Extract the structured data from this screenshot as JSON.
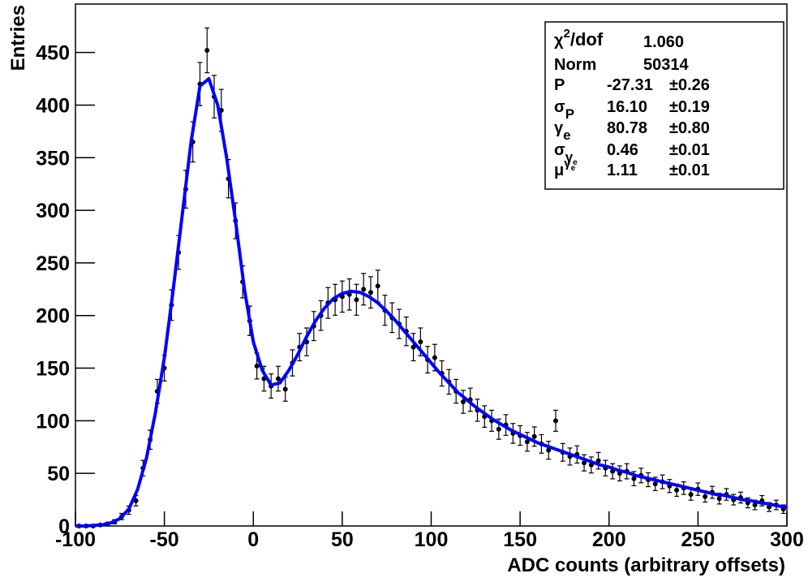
{
  "chart_data": {
    "type": "errorbar",
    "xlabel": "ADC counts (arbitrary offsets)",
    "ylabel": "Entries",
    "xlim": [
      -100,
      300
    ],
    "ylim": [
      0,
      496
    ],
    "xticks": [
      -100,
      -50,
      0,
      50,
      100,
      150,
      200,
      250,
      300
    ],
    "yticks": [
      0,
      50,
      100,
      150,
      200,
      250,
      300,
      350,
      400,
      450
    ],
    "points": {
      "color": "#000000",
      "x": [
        -98,
        -94,
        -90,
        -86,
        -82,
        -78,
        -74,
        -70,
        -66,
        -62,
        -58,
        -54,
        -50,
        -46,
        -42,
        -38,
        -34,
        -30,
        -26,
        -22,
        -18,
        -14,
        -10,
        -6,
        -2,
        2,
        6,
        10,
        14,
        18,
        22,
        26,
        30,
        34,
        38,
        42,
        46,
        50,
        54,
        58,
        62,
        66,
        70,
        74,
        78,
        82,
        86,
        90,
        94,
        98,
        102,
        106,
        110,
        114,
        118,
        122,
        126,
        130,
        134,
        138,
        142,
        146,
        150,
        154,
        158,
        162,
        166,
        170,
        174,
        178,
        182,
        186,
        190,
        194,
        198,
        202,
        206,
        210,
        214,
        218,
        222,
        226,
        230,
        234,
        238,
        242,
        246,
        250,
        254,
        258,
        262,
        266,
        270,
        274,
        278,
        282,
        286,
        290,
        294,
        298
      ],
      "values": [
        0,
        0,
        0,
        1,
        2,
        4,
        9,
        15,
        24,
        55,
        82,
        128,
        150,
        210,
        260,
        320,
        365,
        420,
        452,
        408,
        395,
        330,
        290,
        232,
        195,
        152,
        140,
        133,
        140,
        130,
        155,
        170,
        175,
        190,
        200,
        212,
        215,
        218,
        220,
        215,
        225,
        222,
        228,
        205,
        198,
        192,
        185,
        170,
        175,
        158,
        160,
        145,
        137,
        128,
        118,
        120,
        110,
        104,
        100,
        92,
        96,
        88,
        86,
        80,
        85,
        78,
        72,
        100,
        70,
        66,
        68,
        60,
        58,
        62,
        55,
        52,
        50,
        52,
        45,
        48,
        44,
        40,
        42,
        38,
        34,
        36,
        30,
        35,
        28,
        32,
        26,
        30,
        25,
        27,
        22,
        20,
        24,
        18,
        20,
        16
      ],
      "errors": [
        0,
        0,
        0,
        1,
        1.4,
        2,
        3,
        3.9,
        4.9,
        7.4,
        9.1,
        11.3,
        12.2,
        14.5,
        16.1,
        17.9,
        19.1,
        20.5,
        21.3,
        20.2,
        19.9,
        18.2,
        17,
        15.2,
        14,
        12.3,
        11.8,
        11.5,
        11.8,
        11.4,
        12.4,
        13,
        13.2,
        13.8,
        14.1,
        14.6,
        14.7,
        14.8,
        14.8,
        14.7,
        15,
        14.9,
        15.1,
        14.3,
        14.1,
        13.9,
        13.6,
        13,
        13.2,
        12.6,
        12.6,
        12,
        11.7,
        11.3,
        10.9,
        11,
        10.5,
        10.2,
        10,
        9.6,
        9.8,
        9.4,
        9.3,
        8.9,
        9.2,
        8.8,
        8.5,
        10,
        8.4,
        8.1,
        8.2,
        7.7,
        7.6,
        7.9,
        7.4,
        7.2,
        7.1,
        7.2,
        6.7,
        6.9,
        6.6,
        6.3,
        6.5,
        6.2,
        5.8,
        6,
        5.5,
        5.9,
        5.3,
        5.7,
        5.1,
        5.5,
        5,
        5.2,
        4.7,
        4.5,
        4.9,
        4.2,
        4.5,
        4
      ]
    },
    "fit": {
      "color": "#0000ff",
      "x": [
        -100,
        -95,
        -90,
        -85,
        -80,
        -75,
        -70,
        -65,
        -60,
        -55,
        -50,
        -45,
        -40,
        -35,
        -30,
        -25,
        -20,
        -15,
        -10,
        -5,
        0,
        5,
        10,
        15,
        20,
        25,
        30,
        35,
        40,
        45,
        50,
        55,
        60,
        65,
        70,
        75,
        80,
        85,
        90,
        95,
        100,
        105,
        110,
        115,
        120,
        125,
        130,
        135,
        140,
        145,
        150,
        155,
        160,
        165,
        170,
        175,
        180,
        185,
        190,
        195,
        200,
        205,
        210,
        215,
        220,
        225,
        230,
        235,
        240,
        245,
        250,
        255,
        260,
        265,
        270,
        275,
        280,
        285,
        290,
        295,
        300
      ],
      "values": [
        0,
        0,
        0.5,
        1,
        3,
        7,
        16,
        35,
        65,
        108,
        160,
        225,
        295,
        365,
        418,
        425,
        400,
        350,
        290,
        225,
        175,
        148,
        134,
        136,
        148,
        163,
        180,
        195,
        207,
        216,
        221,
        223,
        222,
        218,
        212,
        204,
        195,
        185,
        175,
        165,
        155,
        145,
        136,
        127,
        120,
        113,
        107,
        101,
        96,
        91,
        87,
        83,
        79,
        76,
        73,
        70,
        67,
        64,
        61,
        58,
        56,
        53,
        51,
        48,
        46,
        44,
        42,
        40,
        38,
        36,
        34,
        32,
        30,
        29,
        27,
        25,
        24,
        22,
        21,
        19,
        18
      ]
    },
    "stats": [
      {
        "symbol": "χ",
        "sup": "2",
        "rest": "/dof",
        "value": "1.060"
      },
      {
        "symbol": "Norm",
        "value": "50314"
      },
      {
        "symbol": "P",
        "value": "-27.31",
        "error": "±0.26"
      },
      {
        "symbol": "σ",
        "sub": "P",
        "value": "16.10",
        "error": "±0.19"
      },
      {
        "symbol": "γ",
        "sub": "e",
        "value": "80.78",
        "error": "±0.80"
      },
      {
        "symbol": "σ",
        "sub": "γ",
        "subsub": "e",
        "value": "0.46",
        "error": "±0.01"
      },
      {
        "symbol": "μ",
        "sup": "γ",
        "supsub": "e",
        "value": "1.11",
        "error": "±0.01"
      }
    ]
  }
}
